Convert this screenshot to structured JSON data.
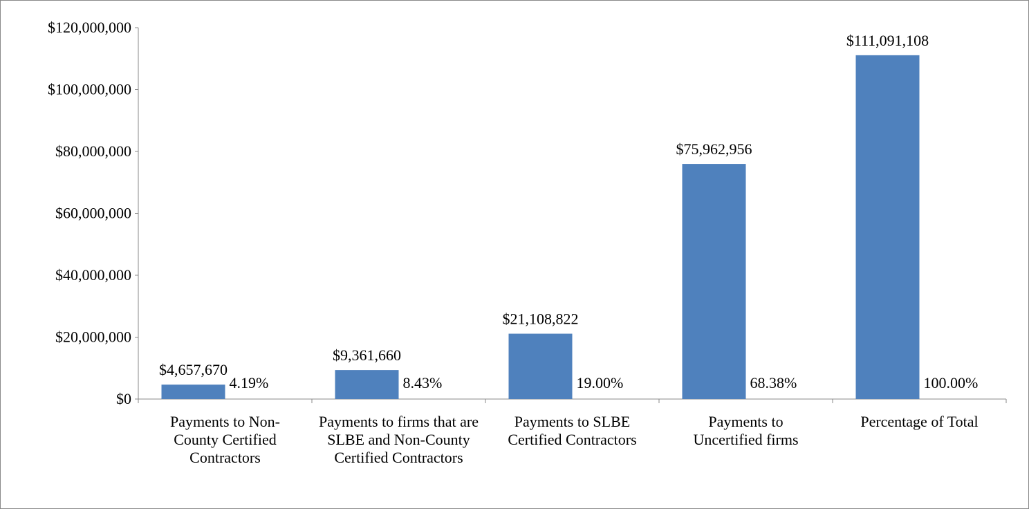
{
  "chart_data": {
    "type": "bar",
    "categories": [
      "Payments to Non-County Certified Contractors",
      "Payments to firms that are SLBE and Non-County Certified Contractors",
      "Payments to SLBE Certified Contractors",
      "Payments to Uncertified firms",
      "Percentage of Total"
    ],
    "values": [
      4657670,
      9361660,
      21108822,
      75962956,
      111091108
    ],
    "value_labels": [
      "$4,657,670",
      "$9,361,660",
      "$21,108,822",
      "$75,962,956",
      "$111,091,108"
    ],
    "annotations": [
      "4.19%",
      "8.43%",
      "19.00%",
      "68.38%",
      "100.00%"
    ],
    "color": "#4f81bd",
    "ylim": [
      0,
      120000000
    ],
    "yticks": [
      {
        "value": 0,
        "label": "$0"
      },
      {
        "value": 20000000,
        "label": "$20,000,000"
      },
      {
        "value": 40000000,
        "label": "$40,000,000"
      },
      {
        "value": 60000000,
        "label": "$60,000,000"
      },
      {
        "value": 80000000,
        "label": "$80,000,000"
      },
      {
        "value": 100000000,
        "label": "$100,000,000"
      },
      {
        "value": 120000000,
        "label": "$120,000,000"
      }
    ],
    "grid": false
  }
}
